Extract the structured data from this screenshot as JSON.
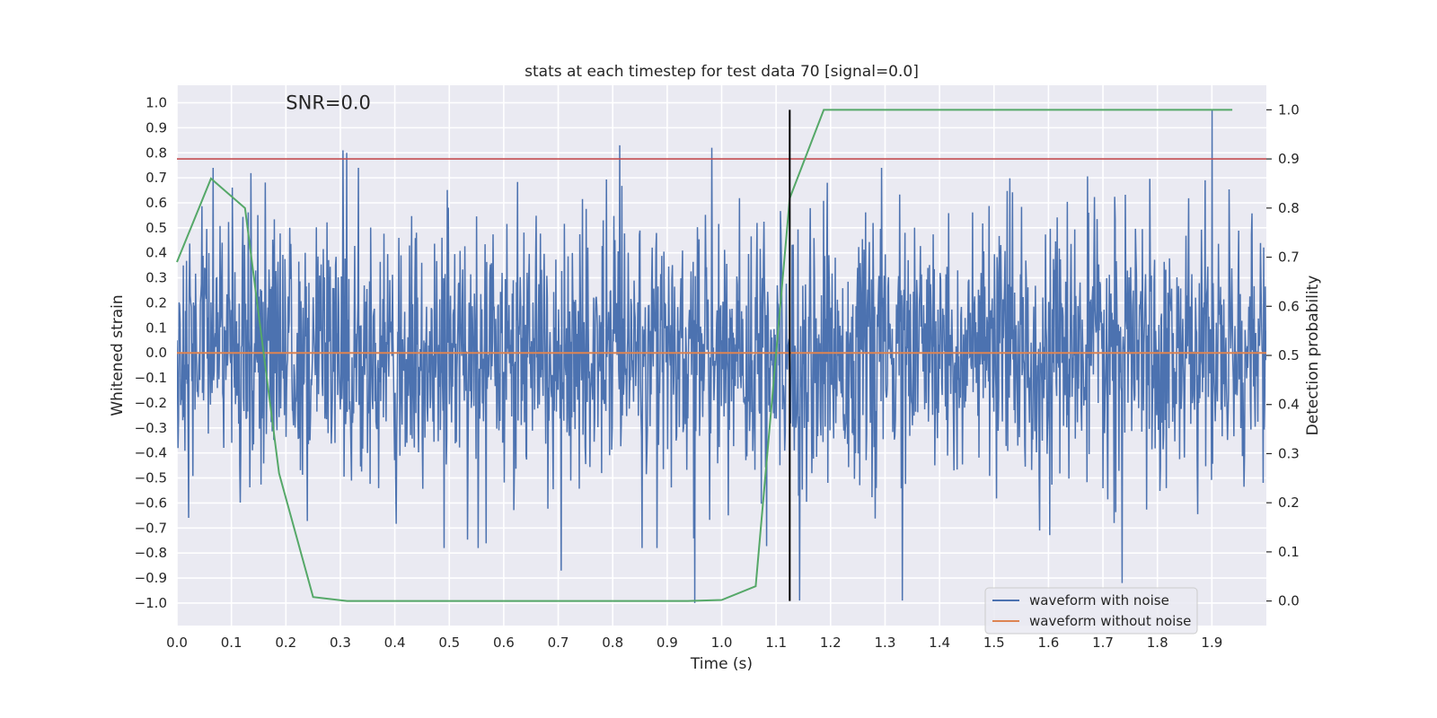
{
  "chart_data": {
    "type": "line",
    "title": "stats at each timestep for test data 70 [signal=0.0]",
    "xlabel": "Time (s)",
    "ylabel": "Whitened strain",
    "y2label": "Detection probability",
    "xlim": [
      0.0,
      2.0
    ],
    "ylim": [
      -1.09,
      1.07
    ],
    "y2lim": [
      -0.05,
      1.05
    ],
    "xticks": [
      "0.0",
      "0.1",
      "0.2",
      "0.3",
      "0.4",
      "0.5",
      "0.6",
      "0.7",
      "0.8",
      "0.9",
      "1.0",
      "1.1",
      "1.2",
      "1.3",
      "1.4",
      "1.5",
      "1.6",
      "1.7",
      "1.8",
      "1.9"
    ],
    "yticks": [
      "1.0",
      "0.9",
      "0.8",
      "0.7",
      "0.6",
      "0.5",
      "0.4",
      "0.3",
      "0.2",
      "0.1",
      "0.0",
      "-0.1",
      "-0.2",
      "-0.3",
      "-0.4",
      "-0.5",
      "-0.6",
      "-0.7",
      "-0.8",
      "-0.9",
      "-1.0"
    ],
    "y2ticks": [
      "1.0",
      "0.9",
      "0.8",
      "0.7",
      "0.6",
      "0.5",
      "0.4",
      "0.3",
      "0.2",
      "0.1",
      "0.0"
    ],
    "annotation": "SNR=0.0",
    "threshold": 0.9,
    "marker_time": 1.125,
    "series": [
      {
        "name": "waveform with noise",
        "color": "#4c72b0",
        "n_samples": 2048,
        "approx_std": 0.25,
        "notable_peaks": [
          {
            "x": 0.305,
            "y": 0.81
          },
          {
            "x": 0.312,
            "y": 0.8
          },
          {
            "x": 0.813,
            "y": 0.83
          },
          {
            "x": 0.982,
            "y": 0.82
          },
          {
            "x": 1.9,
            "y": 0.97
          },
          {
            "x": 0.951,
            "y": -1.0
          },
          {
            "x": 1.143,
            "y": -0.99
          },
          {
            "x": 1.332,
            "y": -0.99
          },
          {
            "x": 1.735,
            "y": -0.92
          },
          {
            "x": 0.705,
            "y": -0.87
          }
        ]
      },
      {
        "name": "waveform without noise",
        "color": "#dd8452",
        "x": [
          0.0,
          2.0
        ],
        "y": [
          0.0,
          0.0
        ]
      },
      {
        "name": "detection probability",
        "color": "#55a868",
        "axis": "right",
        "x": [
          0.0,
          0.0625,
          0.125,
          0.1875,
          0.25,
          0.3125,
          0.375,
          0.4375,
          0.5,
          0.5625,
          0.625,
          0.6875,
          0.75,
          0.8125,
          0.875,
          0.9375,
          1.0,
          1.0625,
          1.125,
          1.1875,
          1.25,
          1.3125,
          1.375,
          1.4375,
          1.5,
          1.5625,
          1.625,
          1.6875,
          1.75,
          1.8125,
          1.875,
          1.9375
        ],
        "y": [
          0.69,
          0.86,
          0.8,
          0.26,
          0.008,
          0.0,
          0.0,
          0.0,
          0.0,
          0.0,
          0.0,
          0.0,
          0.0,
          0.0,
          0.0,
          0.0,
          0.002,
          0.03,
          0.82,
          1.0,
          1.0,
          1.0,
          1.0,
          1.0,
          1.0,
          1.0,
          1.0,
          1.0,
          1.0,
          1.0,
          1.0,
          1.0
        ]
      }
    ],
    "legend": {
      "position": "lower-right",
      "entries": [
        {
          "label": "waveform with noise",
          "color": "#4c72b0"
        },
        {
          "label": "waveform without noise",
          "color": "#dd8452"
        }
      ]
    },
    "colors": {
      "background": "#eaeaf2",
      "grid": "#ffffff",
      "threshold": "#c44e52",
      "marker": "#000000"
    }
  }
}
